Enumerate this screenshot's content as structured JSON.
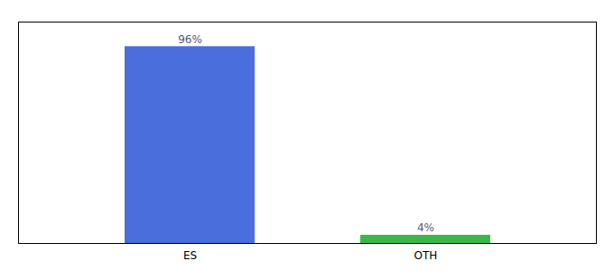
{
  "chart_data": {
    "type": "bar",
    "categories": [
      "ES",
      "OTH"
    ],
    "values": [
      96,
      4
    ],
    "value_labels": [
      "96%",
      "4%"
    ],
    "colors": [
      "#4a6edb",
      "#3cb84a"
    ],
    "ylim": [
      0,
      108
    ],
    "data_labels": true,
    "tick_labels": "x"
  }
}
